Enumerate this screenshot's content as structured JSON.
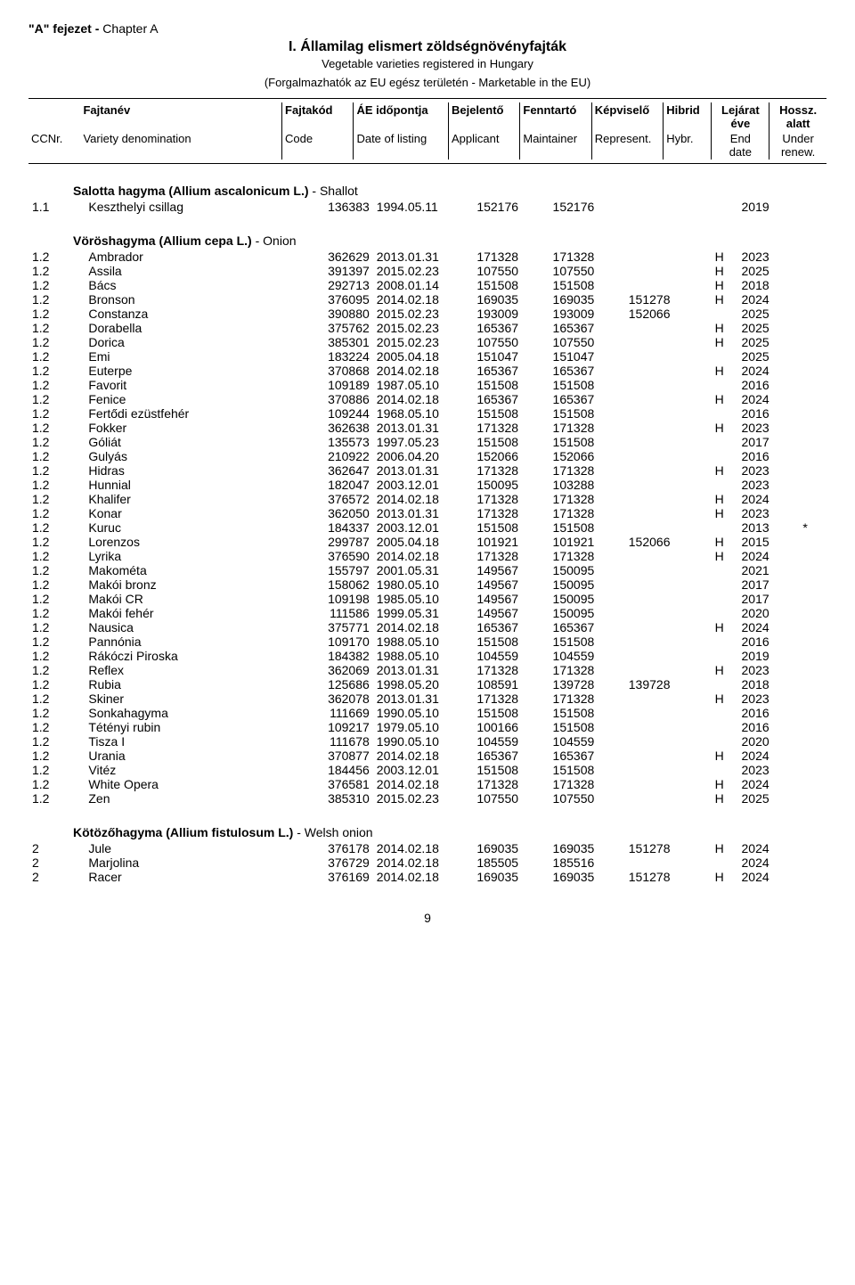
{
  "chapter": {
    "bold": "\"A\" fejezet - ",
    "normal": "Chapter A"
  },
  "title": {
    "main": "I. Államilag elismert zöldségnövényfajták",
    "sub": "Vegetable varieties registered in Hungary",
    "sub2": "(Forgalmazhatók az EU egész területén - Marketable in the EU)"
  },
  "header": {
    "r1": {
      "ccnr": "",
      "name": "Fajtanév",
      "code": "Fajtakód",
      "date": "ÁE időpontja",
      "app": "Bejelentő",
      "maint": "Fenntartó",
      "rep": "Képviselő",
      "hybr": "Hibrid",
      "end1": "Lejárat",
      "end2": "éve",
      "renew1": "Hossz.",
      "renew2": "alatt"
    },
    "r2": {
      "ccnr": "CCNr.",
      "name": "Variety denomination",
      "code": "Code",
      "date": "Date of listing",
      "app": "Applicant",
      "maint": "Maintainer",
      "rep": "Represent.",
      "hybr": "Hybr.",
      "end1": "End",
      "end2": "date",
      "renew1": "Under",
      "renew2": "renew."
    }
  },
  "sections": [
    {
      "title_bold": "Salotta hagyma (Allium ascalonicum L.)",
      "title_normal": " - Shallot",
      "rows": [
        [
          "1.1",
          "Keszthelyi csillag",
          "136383",
          "1994.05.11",
          "152176",
          "152176",
          "",
          "",
          "2019",
          ""
        ]
      ]
    },
    {
      "title_bold": "Vöröshagyma (Allium cepa L.)",
      "title_normal": " - Onion",
      "rows": [
        [
          "1.2",
          "Ambrador",
          "362629",
          "2013.01.31",
          "171328",
          "171328",
          "",
          "H",
          "2023",
          ""
        ],
        [
          "1.2",
          "Assila",
          "391397",
          "2015.02.23",
          "107550",
          "107550",
          "",
          "H",
          "2025",
          ""
        ],
        [
          "1.2",
          "Bács",
          "292713",
          "2008.01.14",
          "151508",
          "151508",
          "",
          "H",
          "2018",
          ""
        ],
        [
          "1.2",
          "Bronson",
          "376095",
          "2014.02.18",
          "169035",
          "169035",
          "151278",
          "H",
          "2024",
          ""
        ],
        [
          "1.2",
          "Constanza",
          "390880",
          "2015.02.23",
          "193009",
          "193009",
          "152066",
          "",
          "2025",
          ""
        ],
        [
          "1.2",
          "Dorabella",
          "375762",
          "2015.02.23",
          "165367",
          "165367",
          "",
          "H",
          "2025",
          ""
        ],
        [
          "1.2",
          "Dorica",
          "385301",
          "2015.02.23",
          "107550",
          "107550",
          "",
          "H",
          "2025",
          ""
        ],
        [
          "1.2",
          "Emi",
          "183224",
          "2005.04.18",
          "151047",
          "151047",
          "",
          "",
          "2025",
          ""
        ],
        [
          "1.2",
          "Euterpe",
          "370868",
          "2014.02.18",
          "165367",
          "165367",
          "",
          "H",
          "2024",
          ""
        ],
        [
          "1.2",
          "Favorit",
          "109189",
          "1987.05.10",
          "151508",
          "151508",
          "",
          "",
          "2016",
          ""
        ],
        [
          "1.2",
          "Fenice",
          "370886",
          "2014.02.18",
          "165367",
          "165367",
          "",
          "H",
          "2024",
          ""
        ],
        [
          "1.2",
          "Fertődi ezüstfehér",
          "109244",
          "1968.05.10",
          "151508",
          "151508",
          "",
          "",
          "2016",
          ""
        ],
        [
          "1.2",
          "Fokker",
          "362638",
          "2013.01.31",
          "171328",
          "171328",
          "",
          "H",
          "2023",
          ""
        ],
        [
          "1.2",
          "Góliát",
          "135573",
          "1997.05.23",
          "151508",
          "151508",
          "",
          "",
          "2017",
          ""
        ],
        [
          "1.2",
          "Gulyás",
          "210922",
          "2006.04.20",
          "152066",
          "152066",
          "",
          "",
          "2016",
          ""
        ],
        [
          "1.2",
          "Hidras",
          "362647",
          "2013.01.31",
          "171328",
          "171328",
          "",
          "H",
          "2023",
          ""
        ],
        [
          "1.2",
          "Hunnial",
          "182047",
          "2003.12.01",
          "150095",
          "103288",
          "",
          "",
          "2023",
          ""
        ],
        [
          "1.2",
          "Khalifer",
          "376572",
          "2014.02.18",
          "171328",
          "171328",
          "",
          "H",
          "2024",
          ""
        ],
        [
          "1.2",
          "Konar",
          "362050",
          "2013.01.31",
          "171328",
          "171328",
          "",
          "H",
          "2023",
          ""
        ],
        [
          "1.2",
          "Kuruc",
          "184337",
          "2003.12.01",
          "151508",
          "151508",
          "",
          "",
          "2013",
          "*"
        ],
        [
          "1.2",
          "Lorenzos",
          "299787",
          "2005.04.18",
          "101921",
          "101921",
          "152066",
          "H",
          "2015",
          ""
        ],
        [
          "1.2",
          "Lyrika",
          "376590",
          "2014.02.18",
          "171328",
          "171328",
          "",
          "H",
          "2024",
          ""
        ],
        [
          "1.2",
          "Makométa",
          "155797",
          "2001.05.31",
          "149567",
          "150095",
          "",
          "",
          "2021",
          ""
        ],
        [
          "1.2",
          "Makói bronz",
          "158062",
          "1980.05.10",
          "149567",
          "150095",
          "",
          "",
          "2017",
          ""
        ],
        [
          "1.2",
          "Makói CR",
          "109198",
          "1985.05.10",
          "149567",
          "150095",
          "",
          "",
          "2017",
          ""
        ],
        [
          "1.2",
          "Makói fehér",
          "111586",
          "1999.05.31",
          "149567",
          "150095",
          "",
          "",
          "2020",
          ""
        ],
        [
          "1.2",
          "Nausica",
          "375771",
          "2014.02.18",
          "165367",
          "165367",
          "",
          "H",
          "2024",
          ""
        ],
        [
          "1.2",
          "Pannónia",
          "109170",
          "1988.05.10",
          "151508",
          "151508",
          "",
          "",
          "2016",
          ""
        ],
        [
          "1.2",
          "Rákóczi Piroska",
          "184382",
          "1988.05.10",
          "104559",
          "104559",
          "",
          "",
          "2019",
          ""
        ],
        [
          "1.2",
          "Reflex",
          "362069",
          "2013.01.31",
          "171328",
          "171328",
          "",
          "H",
          "2023",
          ""
        ],
        [
          "1.2",
          "Rubia",
          "125686",
          "1998.05.20",
          "108591",
          "139728",
          "139728",
          "",
          "2018",
          ""
        ],
        [
          "1.2",
          "Skiner",
          "362078",
          "2013.01.31",
          "171328",
          "171328",
          "",
          "H",
          "2023",
          ""
        ],
        [
          "1.2",
          "Sonkahagyma",
          "111669",
          "1990.05.10",
          "151508",
          "151508",
          "",
          "",
          "2016",
          ""
        ],
        [
          "1.2",
          "Tétényi rubin",
          "109217",
          "1979.05.10",
          "100166",
          "151508",
          "",
          "",
          "2016",
          ""
        ],
        [
          "1.2",
          "Tisza I",
          "111678",
          "1990.05.10",
          "104559",
          "104559",
          "",
          "",
          "2020",
          ""
        ],
        [
          "1.2",
          "Urania",
          "370877",
          "2014.02.18",
          "165367",
          "165367",
          "",
          "H",
          "2024",
          ""
        ],
        [
          "1.2",
          "Vitéz",
          "184456",
          "2003.12.01",
          "151508",
          "151508",
          "",
          "",
          "2023",
          ""
        ],
        [
          "1.2",
          "White Opera",
          "376581",
          "2014.02.18",
          "171328",
          "171328",
          "",
          "H",
          "2024",
          ""
        ],
        [
          "1.2",
          "Zen",
          "385310",
          "2015.02.23",
          "107550",
          "107550",
          "",
          "H",
          "2025",
          ""
        ]
      ]
    },
    {
      "title_bold": "Kötözőhagyma (Allium fistulosum L.)",
      "title_normal": " - Welsh onion",
      "rows": [
        [
          "2",
          "Jule",
          "376178",
          "2014.02.18",
          "169035",
          "169035",
          "151278",
          "H",
          "2024",
          ""
        ],
        [
          "2",
          "Marjolina",
          "376729",
          "2014.02.18",
          "185505",
          "185516",
          "",
          "",
          "2024",
          ""
        ],
        [
          "2",
          "Racer",
          "376169",
          "2014.02.18",
          "169035",
          "169035",
          "151278",
          "H",
          "2024",
          ""
        ]
      ]
    }
  ],
  "pageNumber": "9"
}
